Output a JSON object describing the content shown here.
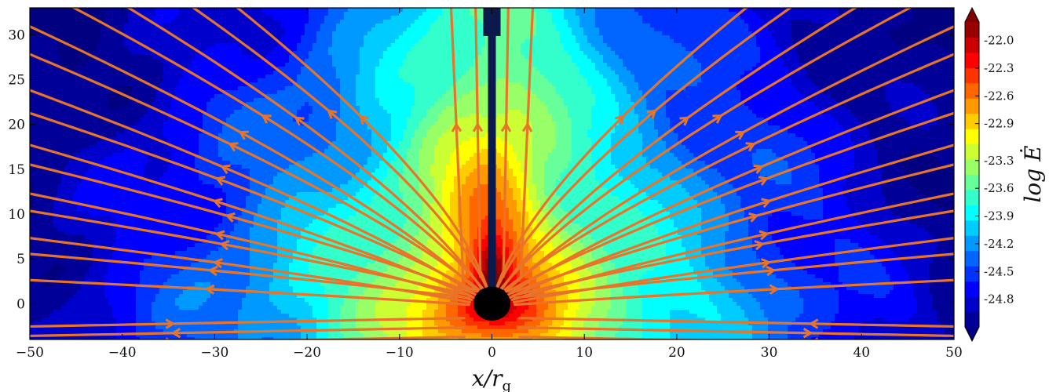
{
  "chart_data": {
    "type": "heatmap",
    "title": "",
    "xlabel": "x/r",
    "xlabel_subscript": "g",
    "ylabel": "",
    "xlim": [
      -50,
      50
    ],
    "ylim": [
      -4,
      33
    ],
    "x_ticks": [
      -50,
      -40,
      -30,
      -20,
      -10,
      0,
      10,
      20,
      30,
      40,
      50
    ],
    "x_tick_labels": [
      "−50",
      "−40",
      "−30",
      "−20",
      "−10",
      "0",
      "10",
      "20",
      "30",
      "40",
      "50"
    ],
    "y_ticks": [
      0,
      5,
      10,
      15,
      20,
      25,
      30
    ],
    "y_tick_labels": [
      "0",
      "5",
      "10",
      "15",
      "20",
      "25",
      "30"
    ],
    "grid": false,
    "colorbar": {
      "label": "log Ė",
      "min": -25.1,
      "max": -21.8,
      "tick_values": [
        -22.0,
        -22.3,
        -22.6,
        -22.9,
        -23.3,
        -23.6,
        -23.9,
        -24.2,
        -24.5,
        -24.8
      ],
      "tick_labels": [
        "-22.0",
        "-22.3",
        "-22.6",
        "-22.9",
        "-23.3",
        "-23.6",
        "-23.9",
        "-24.2",
        "-24.5",
        "-24.8"
      ],
      "extend": "both",
      "colormap": "jet",
      "levels": 20
    },
    "overlay": {
      "streamlines": "outflow field lines",
      "streamline_color": "#e8742a",
      "black_hole": {
        "x": 0,
        "y": 0,
        "radius": 2
      },
      "polar_jet_column": {
        "x": 0,
        "y_min": 0,
        "y_max": 33
      }
    }
  },
  "colors": {
    "streamline": "#e8742a",
    "black_hole": "#000000",
    "jet_column": "#0b1a4a"
  }
}
